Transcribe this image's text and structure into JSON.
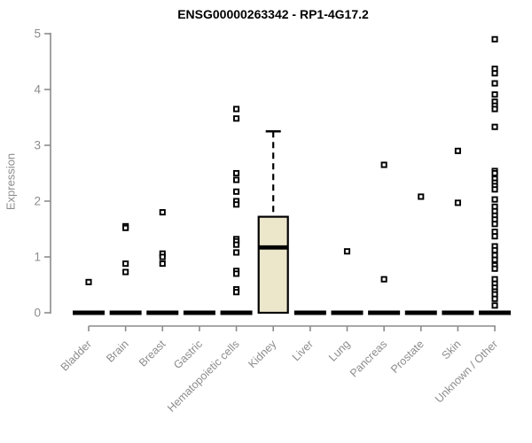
{
  "chart_data": {
    "type": "boxplot",
    "title": "ENSG00000263342 - RP1-4G17.2",
    "xlabel": "",
    "ylabel": "Expression",
    "ylim": [
      0,
      5
    ],
    "yticks": [
      0,
      1,
      2,
      3,
      4,
      5
    ],
    "grid": false,
    "legend": "none",
    "colors": {
      "axis": "#8c8c8c",
      "tick_text": "#8c8c8c",
      "title_text": "#000000",
      "box_fill": "#ece7cb",
      "box_stroke": "#000000",
      "marker": "#000000",
      "zero_bar": "#000000"
    },
    "categories": [
      "Bladder",
      "Brain",
      "Breast",
      "Gastric",
      "Hematopoietic cells",
      "Kidney",
      "Liver",
      "Lung",
      "Pancreas",
      "Prostate",
      "Skin",
      "Unknown / Other"
    ],
    "series": [
      {
        "category": "Bladder",
        "zero_bar": true,
        "points": [
          0.55
        ]
      },
      {
        "category": "Brain",
        "zero_bar": true,
        "points": [
          1.55,
          1.52,
          0.88,
          0.73
        ]
      },
      {
        "category": "Breast",
        "zero_bar": true,
        "points": [
          1.8,
          1.06,
          1.0,
          0.88
        ]
      },
      {
        "category": "Gastric",
        "zero_bar": true,
        "points": []
      },
      {
        "category": "Hematopoietic cells",
        "zero_bar": true,
        "points": [
          3.65,
          3.48,
          2.5,
          2.38,
          2.17,
          2.0,
          1.94,
          1.32,
          1.28,
          1.22,
          1.08,
          0.75,
          0.7,
          0.42,
          0.37
        ]
      },
      {
        "category": "Kidney",
        "zero_bar": false,
        "points": [],
        "box": {
          "q1": 0.0,
          "median": 1.17,
          "q3": 1.72,
          "whisker_high": 3.25,
          "whisker_low": 0.0
        }
      },
      {
        "category": "Liver",
        "zero_bar": true,
        "points": []
      },
      {
        "category": "Lung",
        "zero_bar": true,
        "points": [
          1.1
        ]
      },
      {
        "category": "Pancreas",
        "zero_bar": true,
        "points": [
          2.65,
          0.6
        ]
      },
      {
        "category": "Prostate",
        "zero_bar": true,
        "points": [
          2.08
        ]
      },
      {
        "category": "Skin",
        "zero_bar": true,
        "points": [
          2.9,
          1.97
        ]
      },
      {
        "category": "Unknown / Other",
        "zero_bar": true,
        "points": [
          4.9,
          4.37,
          4.29,
          4.11,
          3.91,
          3.78,
          3.71,
          3.65,
          3.33,
          2.54,
          2.5,
          2.4,
          2.33,
          2.27,
          2.21,
          2.03,
          1.9,
          1.82,
          1.74,
          1.67,
          1.59,
          1.45,
          1.37,
          1.19,
          1.12,
          1.03,
          0.95,
          0.85,
          0.79,
          0.6,
          0.52,
          0.45,
          0.38,
          0.33,
          0.25,
          0.13
        ]
      }
    ]
  }
}
